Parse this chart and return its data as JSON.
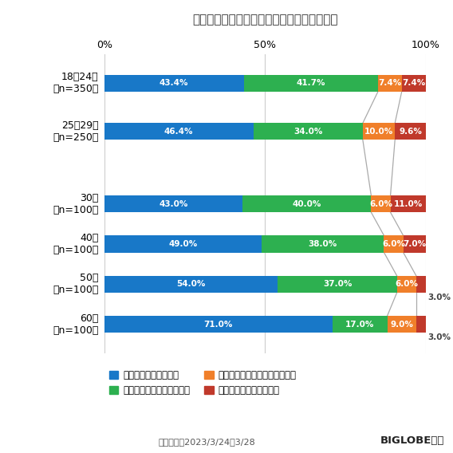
{
  "title": "》年代別》他人に迷惑をかけることへの意識",
  "title_prefix": "【年代別】",
  "title_main": "他人に迷惑をかけることへの意識",
  "categories": [
    "18～24歳\n（n=350）",
    "25～29歳\n（n=250）",
    "30代\n（n=100）",
    "40代\n（n=100）",
    "50代\n（n=100）",
    "60代\n（n=100）"
  ],
  "series_names": [
    "意識して生活している",
    "やや意識して生活している",
    "あまり意識して生活していない",
    "意識して生活していない"
  ],
  "values": [
    [
      43.4,
      41.7,
      7.4,
      7.4
    ],
    [
      46.4,
      34.0,
      10.0,
      9.6
    ],
    [
      43.0,
      40.0,
      6.0,
      11.0
    ],
    [
      49.0,
      38.0,
      6.0,
      7.0
    ],
    [
      54.0,
      37.0,
      6.0,
      3.0
    ],
    [
      71.0,
      17.0,
      9.0,
      3.0
    ]
  ],
  "colors": [
    "#1878c8",
    "#2db050",
    "#f07f2a",
    "#c0392b"
  ],
  "xlabel_ticks": [
    0,
    50,
    100
  ],
  "xlabel_labels": [
    "0%",
    "50%",
    "100%"
  ],
  "footnote": "調査期間：2023/3/24～3/28",
  "biglobe": "BIGLOBE調べ",
  "background_color": "#ffffff",
  "bar_height": 0.42,
  "label_threshold": 5.0,
  "connector_boundary_indices": [
    1,
    2
  ],
  "y_gaps": [
    1.0,
    1.0,
    1.5,
    1.0,
    1.0,
    1.0
  ]
}
